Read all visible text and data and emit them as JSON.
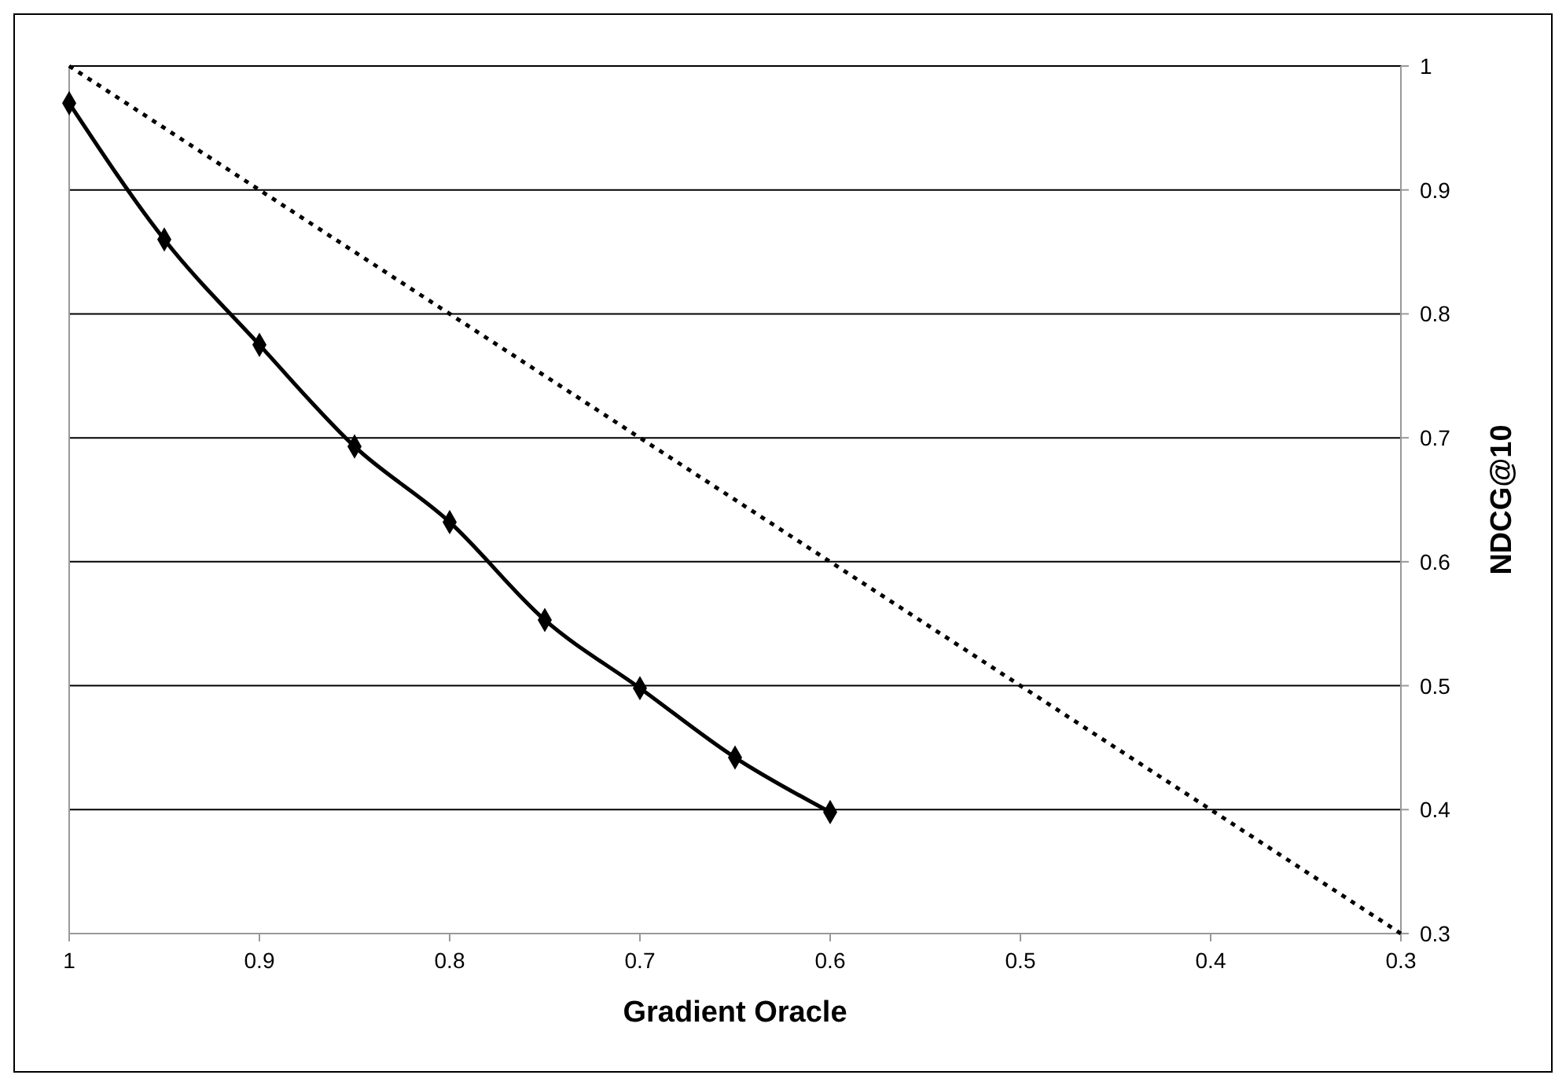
{
  "chart_data": {
    "type": "line",
    "xlabel": "Gradient Oracle",
    "ylabel": "NDCG@10",
    "xlim": [
      1,
      0.3
    ],
    "xticks": [
      1,
      0.9,
      0.8,
      0.7,
      0.6,
      0.5,
      0.4,
      0.3
    ],
    "ylim": [
      0.3,
      1
    ],
    "yticks": [
      0.3,
      0.4,
      0.5,
      0.6,
      0.7,
      0.8,
      0.9,
      1
    ],
    "grid": "y",
    "series": [
      {
        "color": "#000000",
        "x": [
          1,
          0.95,
          0.9,
          0.85,
          0.8,
          0.75,
          0.7,
          0.65,
          0.6
        ],
        "values": [
          0.97,
          0.86,
          0.775,
          0.693,
          0.632,
          0.553,
          0.498,
          0.442,
          0.398
        ],
        "marker": "diamond",
        "line_style": "solid"
      },
      {
        "color": "#000000",
        "x": [
          1,
          0.3
        ],
        "values": [
          1,
          0.3
        ],
        "marker": "none",
        "line_style": "dotted"
      }
    ]
  }
}
